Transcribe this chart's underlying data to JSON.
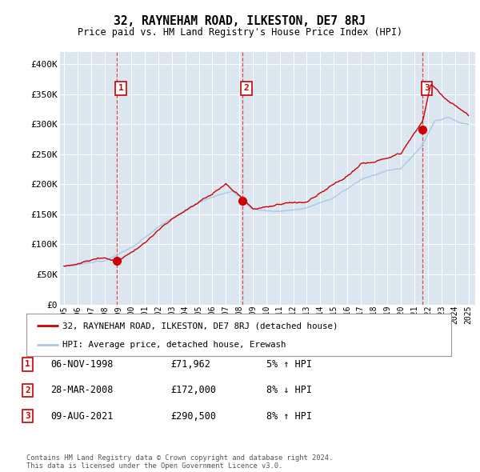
{
  "title": "32, RAYNEHAM ROAD, ILKESTON, DE7 8RJ",
  "subtitle": "Price paid vs. HM Land Registry's House Price Index (HPI)",
  "background_color": "#ffffff",
  "plot_bg_color": "#dce6f1",
  "grid_color": "#ffffff",
  "ylim": [
    0,
    420000
  ],
  "yticks": [
    0,
    50000,
    100000,
    150000,
    200000,
    250000,
    300000,
    350000,
    400000
  ],
  "ytick_labels": [
    "£0",
    "£50K",
    "£100K",
    "£150K",
    "£200K",
    "£250K",
    "£300K",
    "£350K",
    "£400K"
  ],
  "sale_dates": [
    1998.917,
    2008.23,
    2021.6
  ],
  "sale_prices": [
    71962,
    172000,
    290500
  ],
  "sale_labels": [
    "1",
    "2",
    "3"
  ],
  "red_line_color": "#cc0000",
  "blue_line_color": "#a8c8e8",
  "marker_color": "#cc0000",
  "vline_color": "#dd4444",
  "box_color": "#cc0000",
  "legend_entries": [
    "32, RAYNEHAM ROAD, ILKESTON, DE7 8RJ (detached house)",
    "HPI: Average price, detached house, Erewash"
  ],
  "table_rows": [
    [
      "1",
      "06-NOV-1998",
      "£71,962",
      "5% ↑ HPI"
    ],
    [
      "2",
      "28-MAR-2008",
      "£172,000",
      "8% ↓ HPI"
    ],
    [
      "3",
      "09-AUG-2021",
      "£290,500",
      "8% ↑ HPI"
    ]
  ],
  "footer": "Contains HM Land Registry data © Crown copyright and database right 2024.\nThis data is licensed under the Open Government Licence v3.0.",
  "xmin": 1994.7,
  "xmax": 2025.5
}
